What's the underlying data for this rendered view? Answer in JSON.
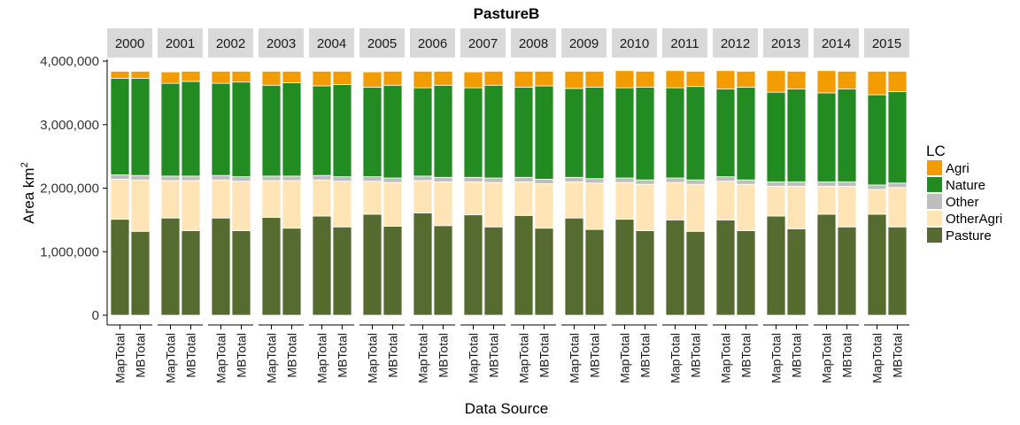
{
  "chart_data": {
    "type": "bar",
    "stacked": true,
    "title": "PastureB",
    "xlabel": "Data Source",
    "ylabel_main": "Area km",
    "ylabel_sup": "2",
    "ylim": [
      0,
      4000000
    ],
    "yticks": [
      0,
      1000000,
      2000000,
      3000000,
      4000000
    ],
    "ytick_labels": [
      "0",
      "1,000,000",
      "2,000,000",
      "3,000,000",
      "4,000,000"
    ],
    "facets": [
      "2000",
      "2001",
      "2002",
      "2003",
      "2004",
      "2005",
      "2006",
      "2007",
      "2008",
      "2009",
      "2010",
      "2011",
      "2012",
      "2013",
      "2014",
      "2015"
    ],
    "categories": [
      "MapTotal",
      "MBTotal"
    ],
    "legend": {
      "title": "LC",
      "position": "right"
    },
    "series": [
      {
        "name": "Pasture",
        "color": "#556B2F",
        "values": [
          [
            1510000,
            1320000
          ],
          [
            1530000,
            1330000
          ],
          [
            1530000,
            1330000
          ],
          [
            1540000,
            1370000
          ],
          [
            1560000,
            1390000
          ],
          [
            1590000,
            1400000
          ],
          [
            1610000,
            1410000
          ],
          [
            1580000,
            1390000
          ],
          [
            1570000,
            1370000
          ],
          [
            1530000,
            1350000
          ],
          [
            1510000,
            1330000
          ],
          [
            1500000,
            1320000
          ],
          [
            1500000,
            1330000
          ],
          [
            1560000,
            1360000
          ],
          [
            1590000,
            1390000
          ],
          [
            1590000,
            1390000
          ]
        ]
      },
      {
        "name": "OtherAgri",
        "color": "#FFE4B5",
        "values": [
          [
            630000,
            810000
          ],
          [
            590000,
            790000
          ],
          [
            600000,
            780000
          ],
          [
            580000,
            750000
          ],
          [
            570000,
            720000
          ],
          [
            520000,
            690000
          ],
          [
            510000,
            690000
          ],
          [
            520000,
            700000
          ],
          [
            530000,
            700000
          ],
          [
            570000,
            730000
          ],
          [
            580000,
            730000
          ],
          [
            590000,
            740000
          ],
          [
            610000,
            730000
          ],
          [
            470000,
            670000
          ],
          [
            440000,
            640000
          ],
          [
            390000,
            620000
          ]
        ]
      },
      {
        "name": "Other",
        "color": "#BEBEBE",
        "values": [
          [
            70000,
            70000
          ],
          [
            70000,
            70000
          ],
          [
            70000,
            70000
          ],
          [
            70000,
            70000
          ],
          [
            70000,
            70000
          ],
          [
            70000,
            70000
          ],
          [
            70000,
            70000
          ],
          [
            70000,
            70000
          ],
          [
            70000,
            70000
          ],
          [
            70000,
            70000
          ],
          [
            70000,
            70000
          ],
          [
            70000,
            70000
          ],
          [
            70000,
            70000
          ],
          [
            70000,
            70000
          ],
          [
            70000,
            70000
          ],
          [
            70000,
            70000
          ]
        ]
      },
      {
        "name": "Nature",
        "color": "#228B22",
        "values": [
          [
            1520000,
            1530000
          ],
          [
            1460000,
            1490000
          ],
          [
            1450000,
            1490000
          ],
          [
            1430000,
            1470000
          ],
          [
            1410000,
            1450000
          ],
          [
            1410000,
            1460000
          ],
          [
            1390000,
            1450000
          ],
          [
            1410000,
            1460000
          ],
          [
            1420000,
            1470000
          ],
          [
            1400000,
            1440000
          ],
          [
            1420000,
            1460000
          ],
          [
            1420000,
            1470000
          ],
          [
            1380000,
            1460000
          ],
          [
            1410000,
            1460000
          ],
          [
            1400000,
            1460000
          ],
          [
            1420000,
            1440000
          ]
        ]
      },
      {
        "name": "Agri",
        "color": "#F39C00",
        "values": [
          [
            110000,
            110000
          ],
          [
            180000,
            160000
          ],
          [
            190000,
            170000
          ],
          [
            220000,
            180000
          ],
          [
            230000,
            210000
          ],
          [
            240000,
            220000
          ],
          [
            260000,
            220000
          ],
          [
            250000,
            220000
          ],
          [
            250000,
            230000
          ],
          [
            270000,
            250000
          ],
          [
            270000,
            250000
          ],
          [
            270000,
            240000
          ],
          [
            290000,
            250000
          ],
          [
            340000,
            280000
          ],
          [
            350000,
            280000
          ],
          [
            370000,
            320000
          ]
        ]
      }
    ]
  }
}
